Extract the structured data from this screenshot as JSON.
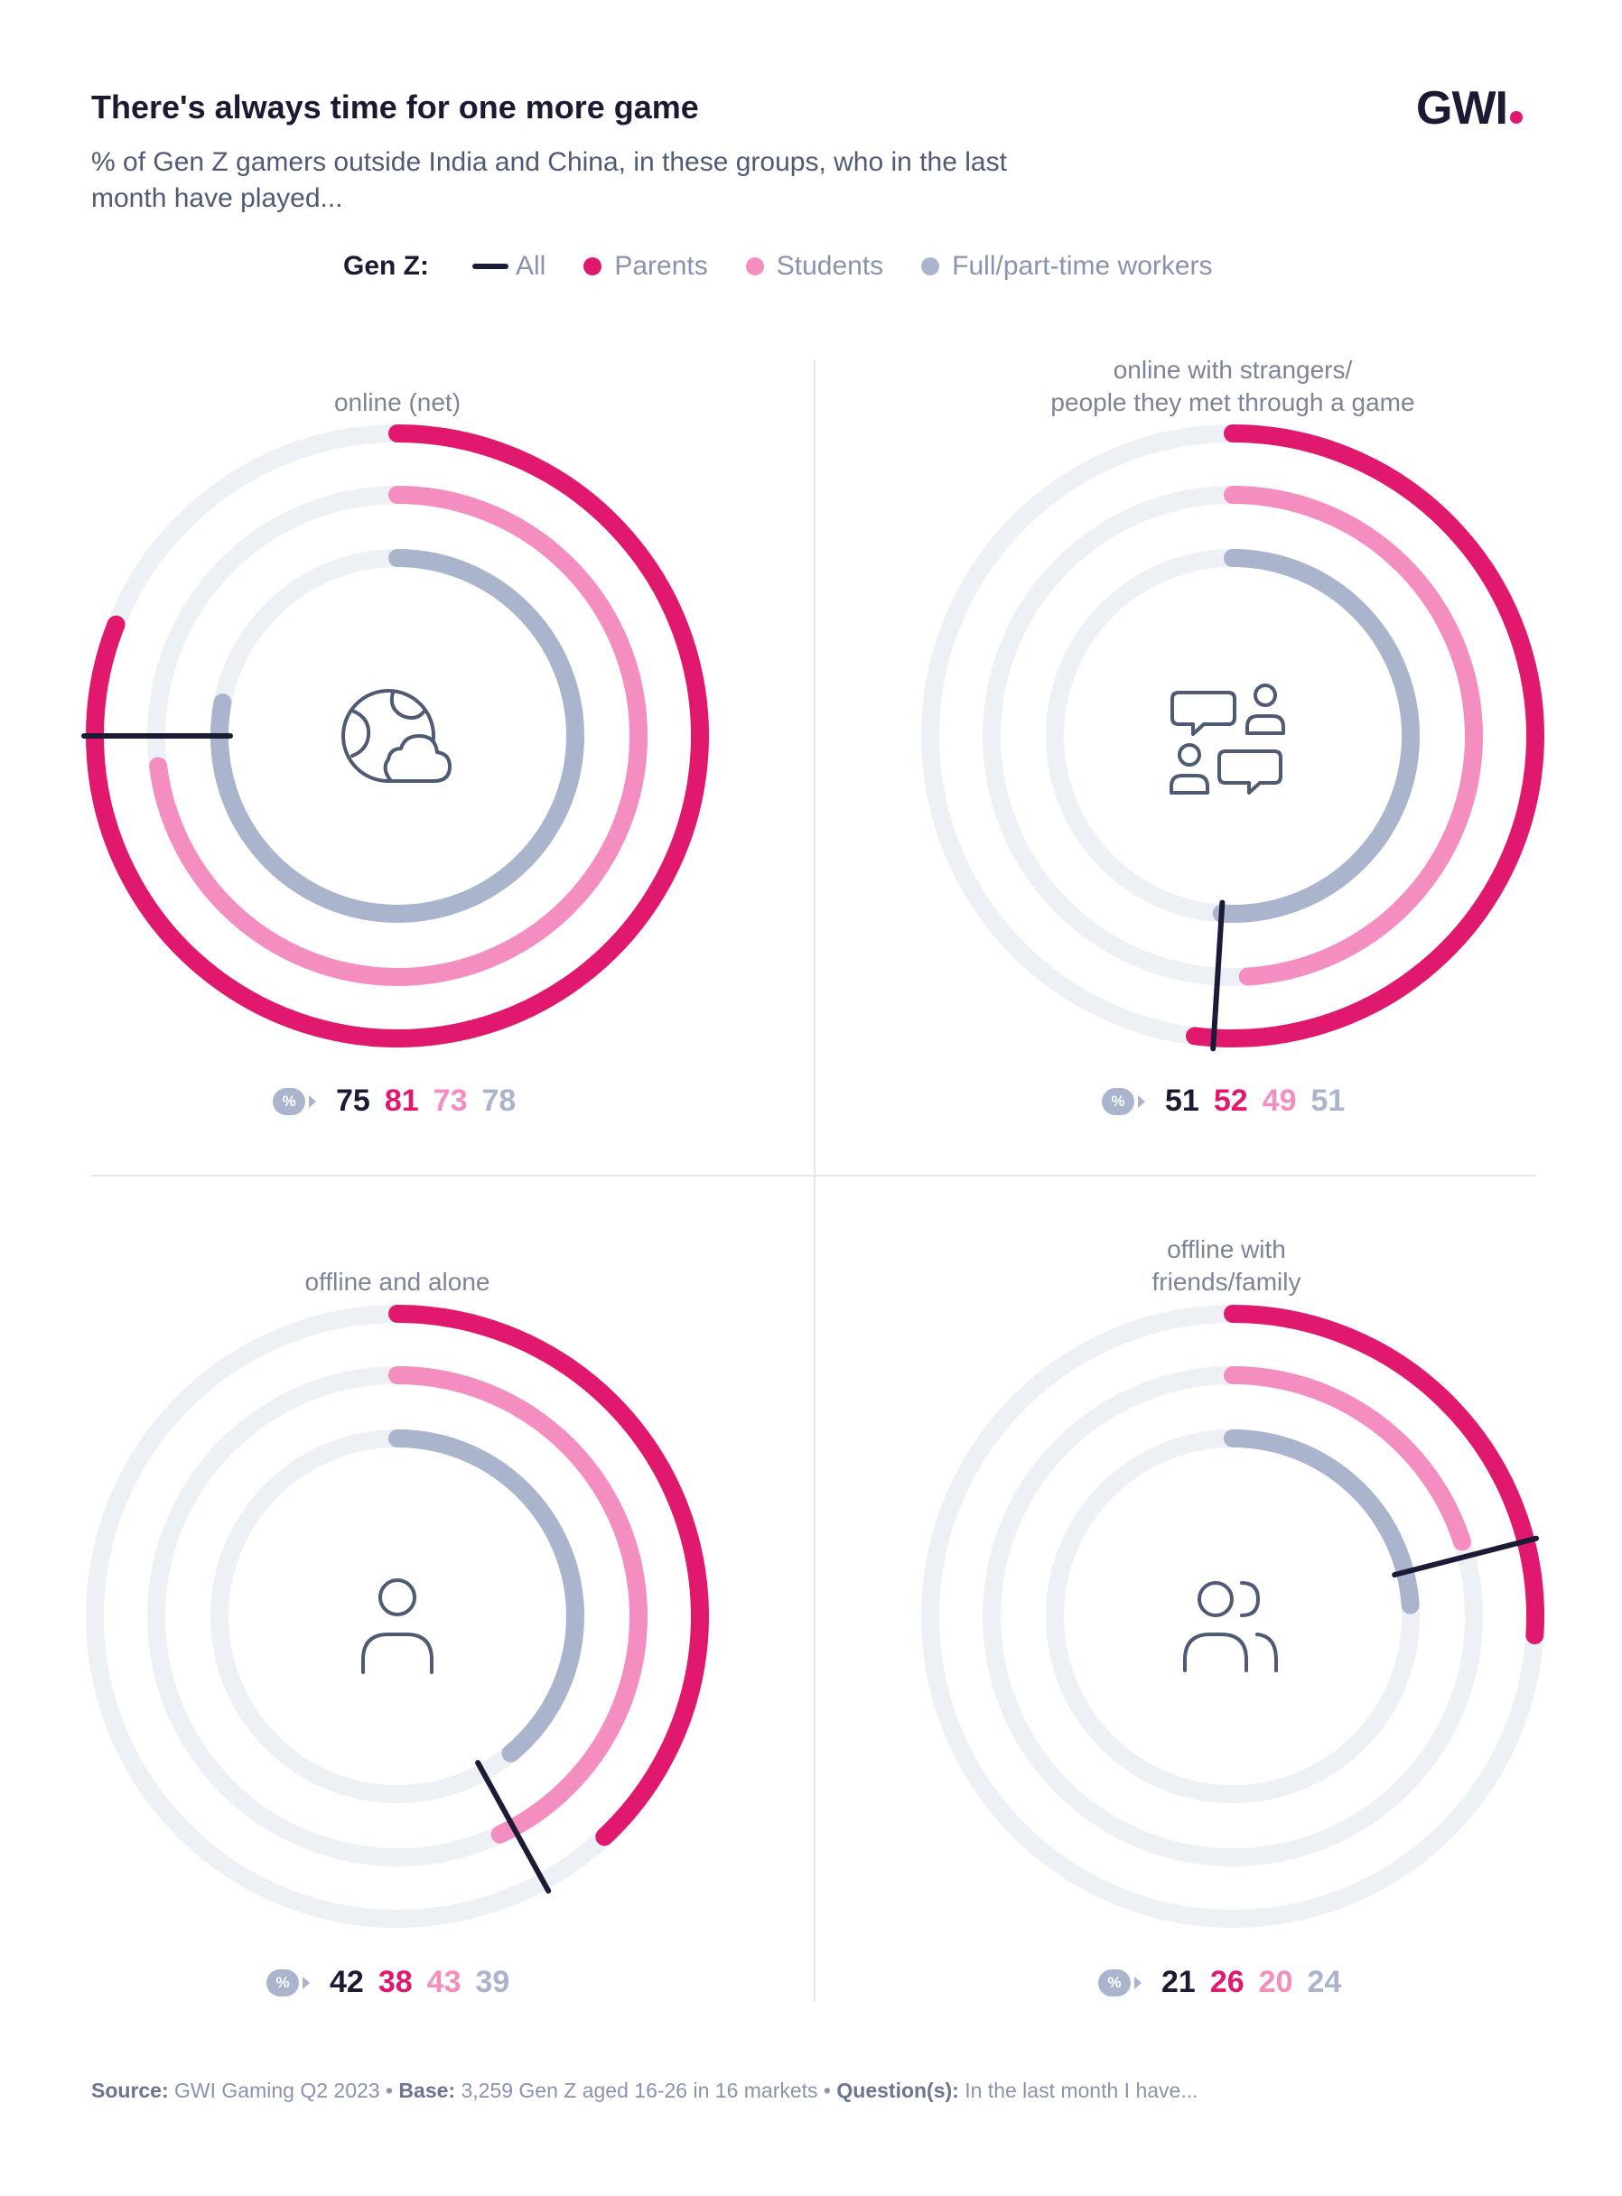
{
  "title": "There's always time for one more game",
  "subtitle": "% of Gen Z gamers outside India and China, in these groups, who in the last month have played...",
  "brand": {
    "logo_text": "GWI",
    "logo_dot_color": "#e0196f"
  },
  "legend": {
    "label": "Gen Z:",
    "items": [
      {
        "label": "All",
        "color": "#1c1b36"
      },
      {
        "label": "Parents",
        "color": "#e0196f"
      },
      {
        "label": "Students",
        "color": "#f58ec0"
      },
      {
        "label": "Full/part-time workers",
        "color": "#aab5cd"
      }
    ]
  },
  "badge_text": "%",
  "chart_data": {
    "type": "radial-bar",
    "scale_max": 100,
    "track_color": "#edf0f5",
    "series": [
      {
        "name": "Parents",
        "color": "#e0196f"
      },
      {
        "name": "Students",
        "color": "#f58ec0"
      },
      {
        "name": "Full/part-time workers",
        "color": "#aab5cd"
      }
    ],
    "marker": {
      "name": "All",
      "color": "#1c1b36"
    },
    "panels": [
      {
        "title": "online (net)",
        "icon": "globe-cloud-icon",
        "all": 75,
        "parents": 81,
        "students": 73,
        "workers": 78
      },
      {
        "title": "online with strangers/\npeople they met through a game",
        "icon": "chat-people-icon",
        "all": 51,
        "parents": 52,
        "students": 49,
        "workers": 51
      },
      {
        "title": "offline and alone",
        "icon": "person-icon",
        "all": 42,
        "parents": 38,
        "students": 43,
        "workers": 39
      },
      {
        "title": "offline with\nfriends/family",
        "icon": "people-icon",
        "all": 21,
        "parents": 26,
        "students": 20,
        "workers": 24
      }
    ]
  },
  "footer": {
    "source_label": "Source:",
    "source": "GWI Gaming Q2 2023",
    "base_label": "Base:",
    "base": "3,259 Gen Z aged 16-26 in 16 markets",
    "question_label": "Question(s):",
    "question": "In the last month I have..."
  }
}
